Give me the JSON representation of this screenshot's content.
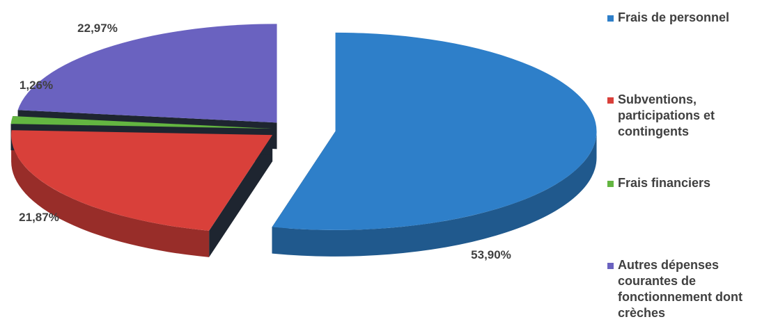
{
  "chart_data": {
    "type": "pie",
    "title": "",
    "slices": [
      {
        "name": "Frais de personnel",
        "value": 53.9,
        "label": "53,90%",
        "color": "#2e7fc9"
      },
      {
        "name": "Subventions, participations et contingents",
        "value": 21.87,
        "label": "21,87%",
        "color": "#d9403a"
      },
      {
        "name": "Frais financiers",
        "value": 1.26,
        "label": "1,26%",
        "color": "#63b541"
      },
      {
        "name": "Autres dépenses courantes de fonctionnement dont crèches",
        "value": 22.97,
        "label": "22,97%",
        "color": "#6a62c0"
      }
    ],
    "exploded": true,
    "three_d": true,
    "legend_position": "right"
  },
  "legend": {
    "items": [
      {
        "label": "Frais de personnel",
        "color": "#2e7fc9"
      },
      {
        "label": "Subventions, participations et contingents",
        "color": "#d9403a"
      },
      {
        "label": "Frais financiers",
        "color": "#63b541"
      },
      {
        "label": "Autres dépenses courantes de fonctionnement dont crèches",
        "color": "#6a62c0"
      }
    ]
  }
}
